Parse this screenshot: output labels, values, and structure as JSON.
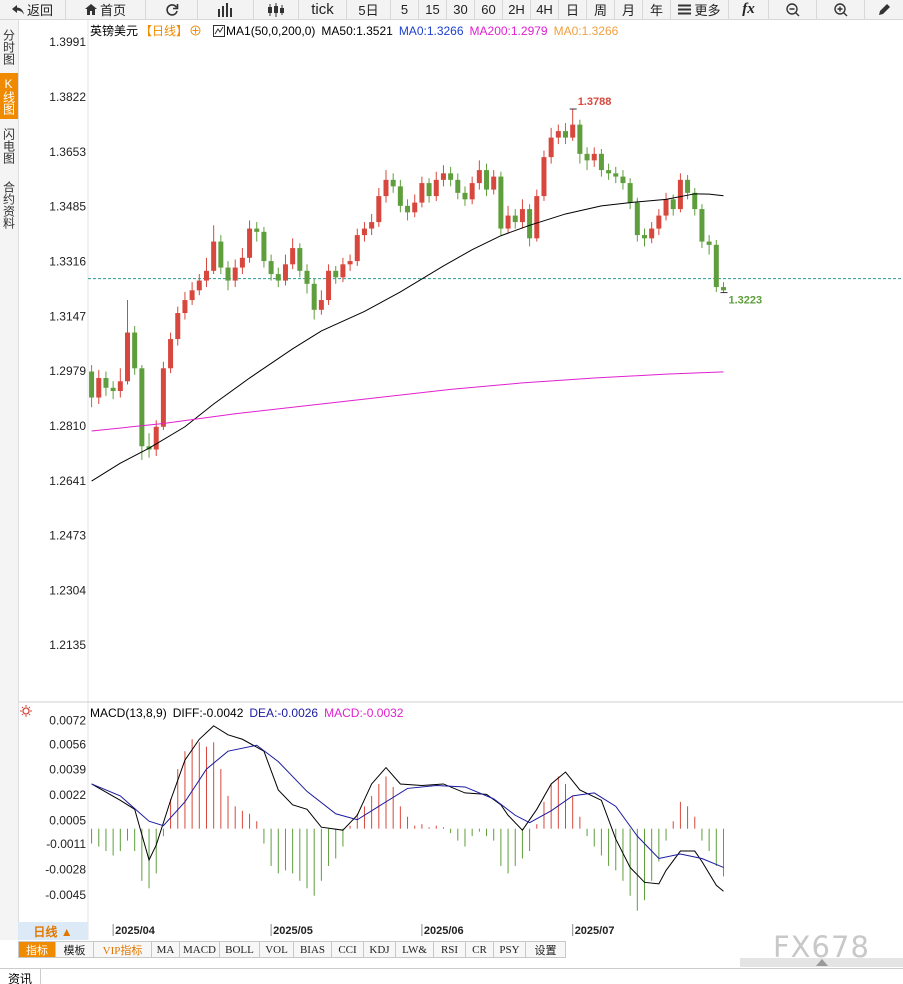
{
  "ui": {
    "toolbar": [
      "返回",
      "首页",
      "tick",
      "5日",
      "5",
      "15",
      "30",
      "60",
      "2H",
      "4H",
      "日",
      "周",
      "月",
      "年",
      "更多",
      "fx"
    ],
    "sidebar": [
      "分时图",
      "K线图",
      "闪电图",
      "合约资料"
    ],
    "period_button": "日线 ▲",
    "bottom_tabs": [
      "指标",
      "模板",
      "VIP指标",
      "MA",
      "MACD",
      "BOLL",
      "VOL",
      "BIAS",
      "CCI",
      "KDJ",
      "LW&",
      "RSI",
      "CR",
      "PSY",
      "设置"
    ],
    "footer": "资讯",
    "watermark": "FX678"
  },
  "chart_data": [
    {
      "type": "candlestick",
      "title": "英镑美元",
      "period": "【日线】",
      "indicator": "MA1(50,0,200,0)",
      "legend": [
        {
          "text": "MA50:1.3521",
          "color": "#000000"
        },
        {
          "text": "MA0:1.3266",
          "color": "#1c3fcf"
        },
        {
          "text": "MA200:1.2979",
          "color": "#e020d0"
        },
        {
          "text": "MA0:1.3266",
          "color": "#f0a040"
        }
      ],
      "up_color": "#d8473d",
      "down_color": "#5e9e3c",
      "open": [
        1.298,
        1.29,
        1.296,
        1.293,
        1.292,
        1.295,
        1.31,
        1.299,
        1.275,
        1.274,
        1.281,
        1.299,
        1.308,
        1.316,
        1.32,
        1.323,
        1.326,
        1.329,
        1.338,
        1.33,
        1.326,
        1.33,
        1.333,
        1.342,
        1.341,
        1.332,
        1.328,
        1.326,
        1.331,
        1.336,
        1.329,
        1.325,
        1.317,
        1.32,
        1.329,
        1.327,
        1.331,
        1.332,
        1.34,
        1.342,
        1.344,
        1.352,
        1.357,
        1.355,
        1.349,
        1.347,
        1.35,
        1.356,
        1.352,
        1.357,
        1.359,
        1.357,
        1.353,
        1.351,
        1.356,
        1.36,
        1.354,
        1.358,
        1.342,
        1.346,
        1.344,
        1.348,
        1.339,
        1.352,
        1.364,
        1.37,
        1.372,
        1.37,
        1.374,
        1.365,
        1.363,
        1.365,
        1.36,
        1.359,
        1.358,
        1.356,
        1.35,
        1.34,
        1.339,
        1.342,
        1.346,
        1.351,
        1.348,
        1.357,
        1.353,
        1.348,
        1.338,
        1.337,
        1.324
      ],
      "high": [
        1.3,
        1.2985,
        1.298,
        1.295,
        1.299,
        1.32,
        1.312,
        1.3,
        1.279,
        1.283,
        1.301,
        1.31,
        1.318,
        1.3225,
        1.3255,
        1.328,
        1.333,
        1.343,
        1.34,
        1.332,
        1.3325,
        1.336,
        1.3445,
        1.344,
        1.3425,
        1.334,
        1.33,
        1.334,
        1.339,
        1.3375,
        1.331,
        1.3265,
        1.323,
        1.331,
        1.3305,
        1.333,
        1.334,
        1.342,
        1.344,
        1.3465,
        1.3545,
        1.36,
        1.359,
        1.357,
        1.351,
        1.3525,
        1.358,
        1.3575,
        1.3595,
        1.3615,
        1.361,
        1.359,
        1.355,
        1.358,
        1.363,
        1.362,
        1.36,
        1.3595,
        1.349,
        1.348,
        1.351,
        1.3495,
        1.354,
        1.366,
        1.373,
        1.374,
        1.3745,
        1.3788,
        1.3755,
        1.367,
        1.367,
        1.3665,
        1.362,
        1.361,
        1.36,
        1.3575,
        1.3515,
        1.342,
        1.344,
        1.348,
        1.353,
        1.3525,
        1.359,
        1.3585,
        1.3545,
        1.3495,
        1.34,
        1.3385,
        1.3255
      ],
      "low": [
        1.287,
        1.288,
        1.2905,
        1.2895,
        1.29,
        1.294,
        1.297,
        1.2708,
        1.2715,
        1.272,
        1.28,
        1.2975,
        1.306,
        1.314,
        1.3185,
        1.3215,
        1.324,
        1.328,
        1.328,
        1.323,
        1.324,
        1.328,
        1.3315,
        1.338,
        1.33,
        1.326,
        1.324,
        1.3245,
        1.3295,
        1.327,
        1.322,
        1.314,
        1.3155,
        1.3185,
        1.325,
        1.3255,
        1.329,
        1.3305,
        1.338,
        1.34,
        1.3425,
        1.35,
        1.353,
        1.347,
        1.3445,
        1.3455,
        1.3485,
        1.35,
        1.3505,
        1.355,
        1.355,
        1.351,
        1.349,
        1.3495,
        1.354,
        1.352,
        1.3525,
        1.34,
        1.3405,
        1.342,
        1.342,
        1.3365,
        1.338,
        1.3505,
        1.362,
        1.368,
        1.368,
        1.369,
        1.362,
        1.36,
        1.361,
        1.358,
        1.357,
        1.356,
        1.354,
        1.348,
        1.338,
        1.3365,
        1.3375,
        1.34,
        1.3445,
        1.346,
        1.347,
        1.351,
        1.346,
        1.336,
        1.334,
        1.3225,
        1.3223
      ],
      "close": [
        1.29,
        1.296,
        1.293,
        1.292,
        1.295,
        1.31,
        1.299,
        1.275,
        1.274,
        1.281,
        1.299,
        1.308,
        1.316,
        1.32,
        1.323,
        1.326,
        1.329,
        1.338,
        1.33,
        1.326,
        1.33,
        1.333,
        1.342,
        1.341,
        1.332,
        1.328,
        1.326,
        1.331,
        1.336,
        1.329,
        1.325,
        1.317,
        1.32,
        1.329,
        1.327,
        1.331,
        1.332,
        1.34,
        1.342,
        1.344,
        1.352,
        1.357,
        1.355,
        1.349,
        1.347,
        1.35,
        1.356,
        1.352,
        1.357,
        1.359,
        1.357,
        1.353,
        1.351,
        1.356,
        1.36,
        1.354,
        1.358,
        1.342,
        1.346,
        1.344,
        1.348,
        1.339,
        1.352,
        1.364,
        1.37,
        1.372,
        1.37,
        1.374,
        1.365,
        1.363,
        1.365,
        1.36,
        1.359,
        1.358,
        1.356,
        1.35,
        1.34,
        1.339,
        1.342,
        1.346,
        1.351,
        1.348,
        1.357,
        1.353,
        1.348,
        1.338,
        1.337,
        1.324,
        1.323
      ],
      "lines": [
        {
          "color": "#000000",
          "x": [
            0,
            4,
            8,
            13,
            17,
            22,
            28,
            32,
            38,
            43,
            49,
            53,
            57,
            61,
            66,
            71,
            75,
            80,
            84,
            86,
            88
          ],
          "values": [
            1.2643,
            1.2698,
            1.2744,
            1.281,
            1.288,
            1.296,
            1.305,
            1.3105,
            1.3165,
            1.3225,
            1.3305,
            1.3355,
            1.3398,
            1.343,
            1.3465,
            1.349,
            1.35,
            1.351,
            1.3527,
            1.3526,
            1.3521
          ]
        },
        {
          "color": "#e020d0",
          "x": [
            0,
            10,
            20,
            30,
            40,
            50,
            60,
            70,
            80,
            88
          ],
          "values": [
            1.2797,
            1.282,
            1.285,
            1.2875,
            1.29,
            1.2925,
            1.2945,
            1.296,
            1.2972,
            1.2979
          ]
        }
      ],
      "price_line": 1.3266,
      "price_line_color": "#2a9d8f",
      "xlim": [
        -0.5,
        113
      ],
      "ylim": [
        1.1969,
        1.4062
      ],
      "yticks": [
        1.3991,
        1.3822,
        1.3653,
        1.3485,
        1.3316,
        1.3147,
        1.2979,
        {
          "value": 1.281,
          "label": "1.2810"
        },
        1.2641,
        1.2473,
        1.2304,
        1.2135
      ],
      "grid": false
    },
    {
      "type": "macd",
      "title": "MACD(13,8,9)",
      "legend": [
        {
          "text": "DIFF:-0.0042",
          "color": "#000000"
        },
        {
          "text": "DEA:-0.0026",
          "color": "#1a1aa0"
        },
        {
          "text": "MACD:-0.0032",
          "color": "#e020d0"
        }
      ],
      "up_color": "#d8473d",
      "down_color": "#5e9e3c",
      "histogram": [
        -0.001,
        -0.0012,
        -0.0015,
        -0.0018,
        -0.0015,
        -0.0008,
        -0.0015,
        -0.0035,
        -0.004,
        -0.003,
        -0.0005,
        0.002,
        0.004,
        0.0052,
        0.006,
        0.0058,
        0.0055,
        0.0058,
        0.004,
        0.0022,
        0.0015,
        0.0012,
        0.001,
        0.0005,
        -0.001,
        -0.0025,
        -0.003,
        -0.0028,
        -0.003,
        -0.0035,
        -0.004,
        -0.0045,
        -0.0035,
        -0.0025,
        -0.002,
        -0.0012,
        0.0002,
        0.001,
        0.0015,
        0.0022,
        0.003,
        0.0035,
        0.0028,
        0.0015,
        0.0008,
        0.0002,
        0.0003,
        0.0001,
        0.0002,
        0.0001,
        -0.0003,
        -0.0008,
        -0.0012,
        -0.0005,
        -0.0002,
        -0.0005,
        -0.0008,
        -0.0025,
        -0.003,
        -0.0025,
        -0.002,
        -0.0015,
        0.0003,
        0.0018,
        0.003,
        0.0035,
        0.003,
        0.0022,
        0.0008,
        -0.0005,
        -0.0012,
        -0.0018,
        -0.0025,
        -0.0028,
        -0.0035,
        -0.0045,
        -0.0055,
        -0.0048,
        -0.0035,
        -0.0022,
        -0.0008,
        0.0005,
        0.0018,
        0.0015,
        0.0008,
        -0.0008,
        -0.0015,
        -0.0025,
        -0.0032
      ],
      "lines": [
        {
          "color": "#000000",
          "x": [
            0,
            4,
            6,
            8,
            9,
            11,
            13,
            15,
            17,
            19,
            21,
            24,
            26,
            28,
            30,
            32,
            35,
            37,
            39,
            41,
            43,
            46,
            49,
            52,
            55,
            57,
            58,
            60,
            62,
            64,
            66,
            68,
            71,
            73,
            75,
            77,
            79,
            80,
            82,
            84,
            85,
            87,
            88
          ],
          "values": [
            0.003,
            0.0019,
            0.0013,
            -0.0021,
            -0.0011,
            0.0019,
            0.0046,
            0.006,
            0.0069,
            0.0063,
            0.006,
            0.0052,
            0.0026,
            0.0016,
            0.0013,
            0.0001,
            -0.0001,
            0.0009,
            0.003,
            0.0041,
            0.003,
            0.0029,
            0.003,
            0.0024,
            0.0023,
            0.0016,
            0.0009,
            -0.0001,
            0.0013,
            0.003,
            0.0038,
            0.0026,
            0.0019,
            -0.0007,
            -0.0026,
            -0.0036,
            -0.0037,
            -0.0028,
            -0.0015,
            -0.0015,
            -0.0022,
            -0.0038,
            -0.0042
          ]
        },
        {
          "color": "#1a1aa0",
          "x": [
            0,
            4,
            8,
            10,
            13,
            16,
            19,
            23,
            26,
            30,
            34,
            37,
            40,
            44,
            48,
            52,
            56,
            59,
            61,
            64,
            67,
            70,
            73,
            76,
            79,
            82,
            85,
            88
          ],
          "values": [
            0.003,
            0.0022,
            0.0005,
            0.0002,
            0.0018,
            0.004,
            0.0052,
            0.0056,
            0.0045,
            0.0025,
            0.001,
            0.0006,
            0.0015,
            0.0027,
            0.0029,
            0.0028,
            0.002,
            0.0009,
            0.0004,
            0.0012,
            0.0022,
            0.0024,
            0.0015,
            -0.0005,
            -0.002,
            -0.0017,
            -0.002,
            -0.0026
          ]
        }
      ],
      "xlim": [
        -0.5,
        113
      ],
      "ylim": [
        -0.0068,
        0.0083
      ],
      "yticks": [
        0.0072,
        0.0056,
        0.0039,
        0.0022,
        0.0005,
        -0.0011,
        -0.0028,
        -0.0045
      ],
      "xticks": [
        {
          "value": 3,
          "label": "2025/04"
        },
        {
          "value": 25,
          "label": "2025/05"
        },
        {
          "value": 46,
          "label": "2025/06"
        },
        {
          "value": 67,
          "label": "2025/07"
        }
      ],
      "grid": false
    }
  ]
}
